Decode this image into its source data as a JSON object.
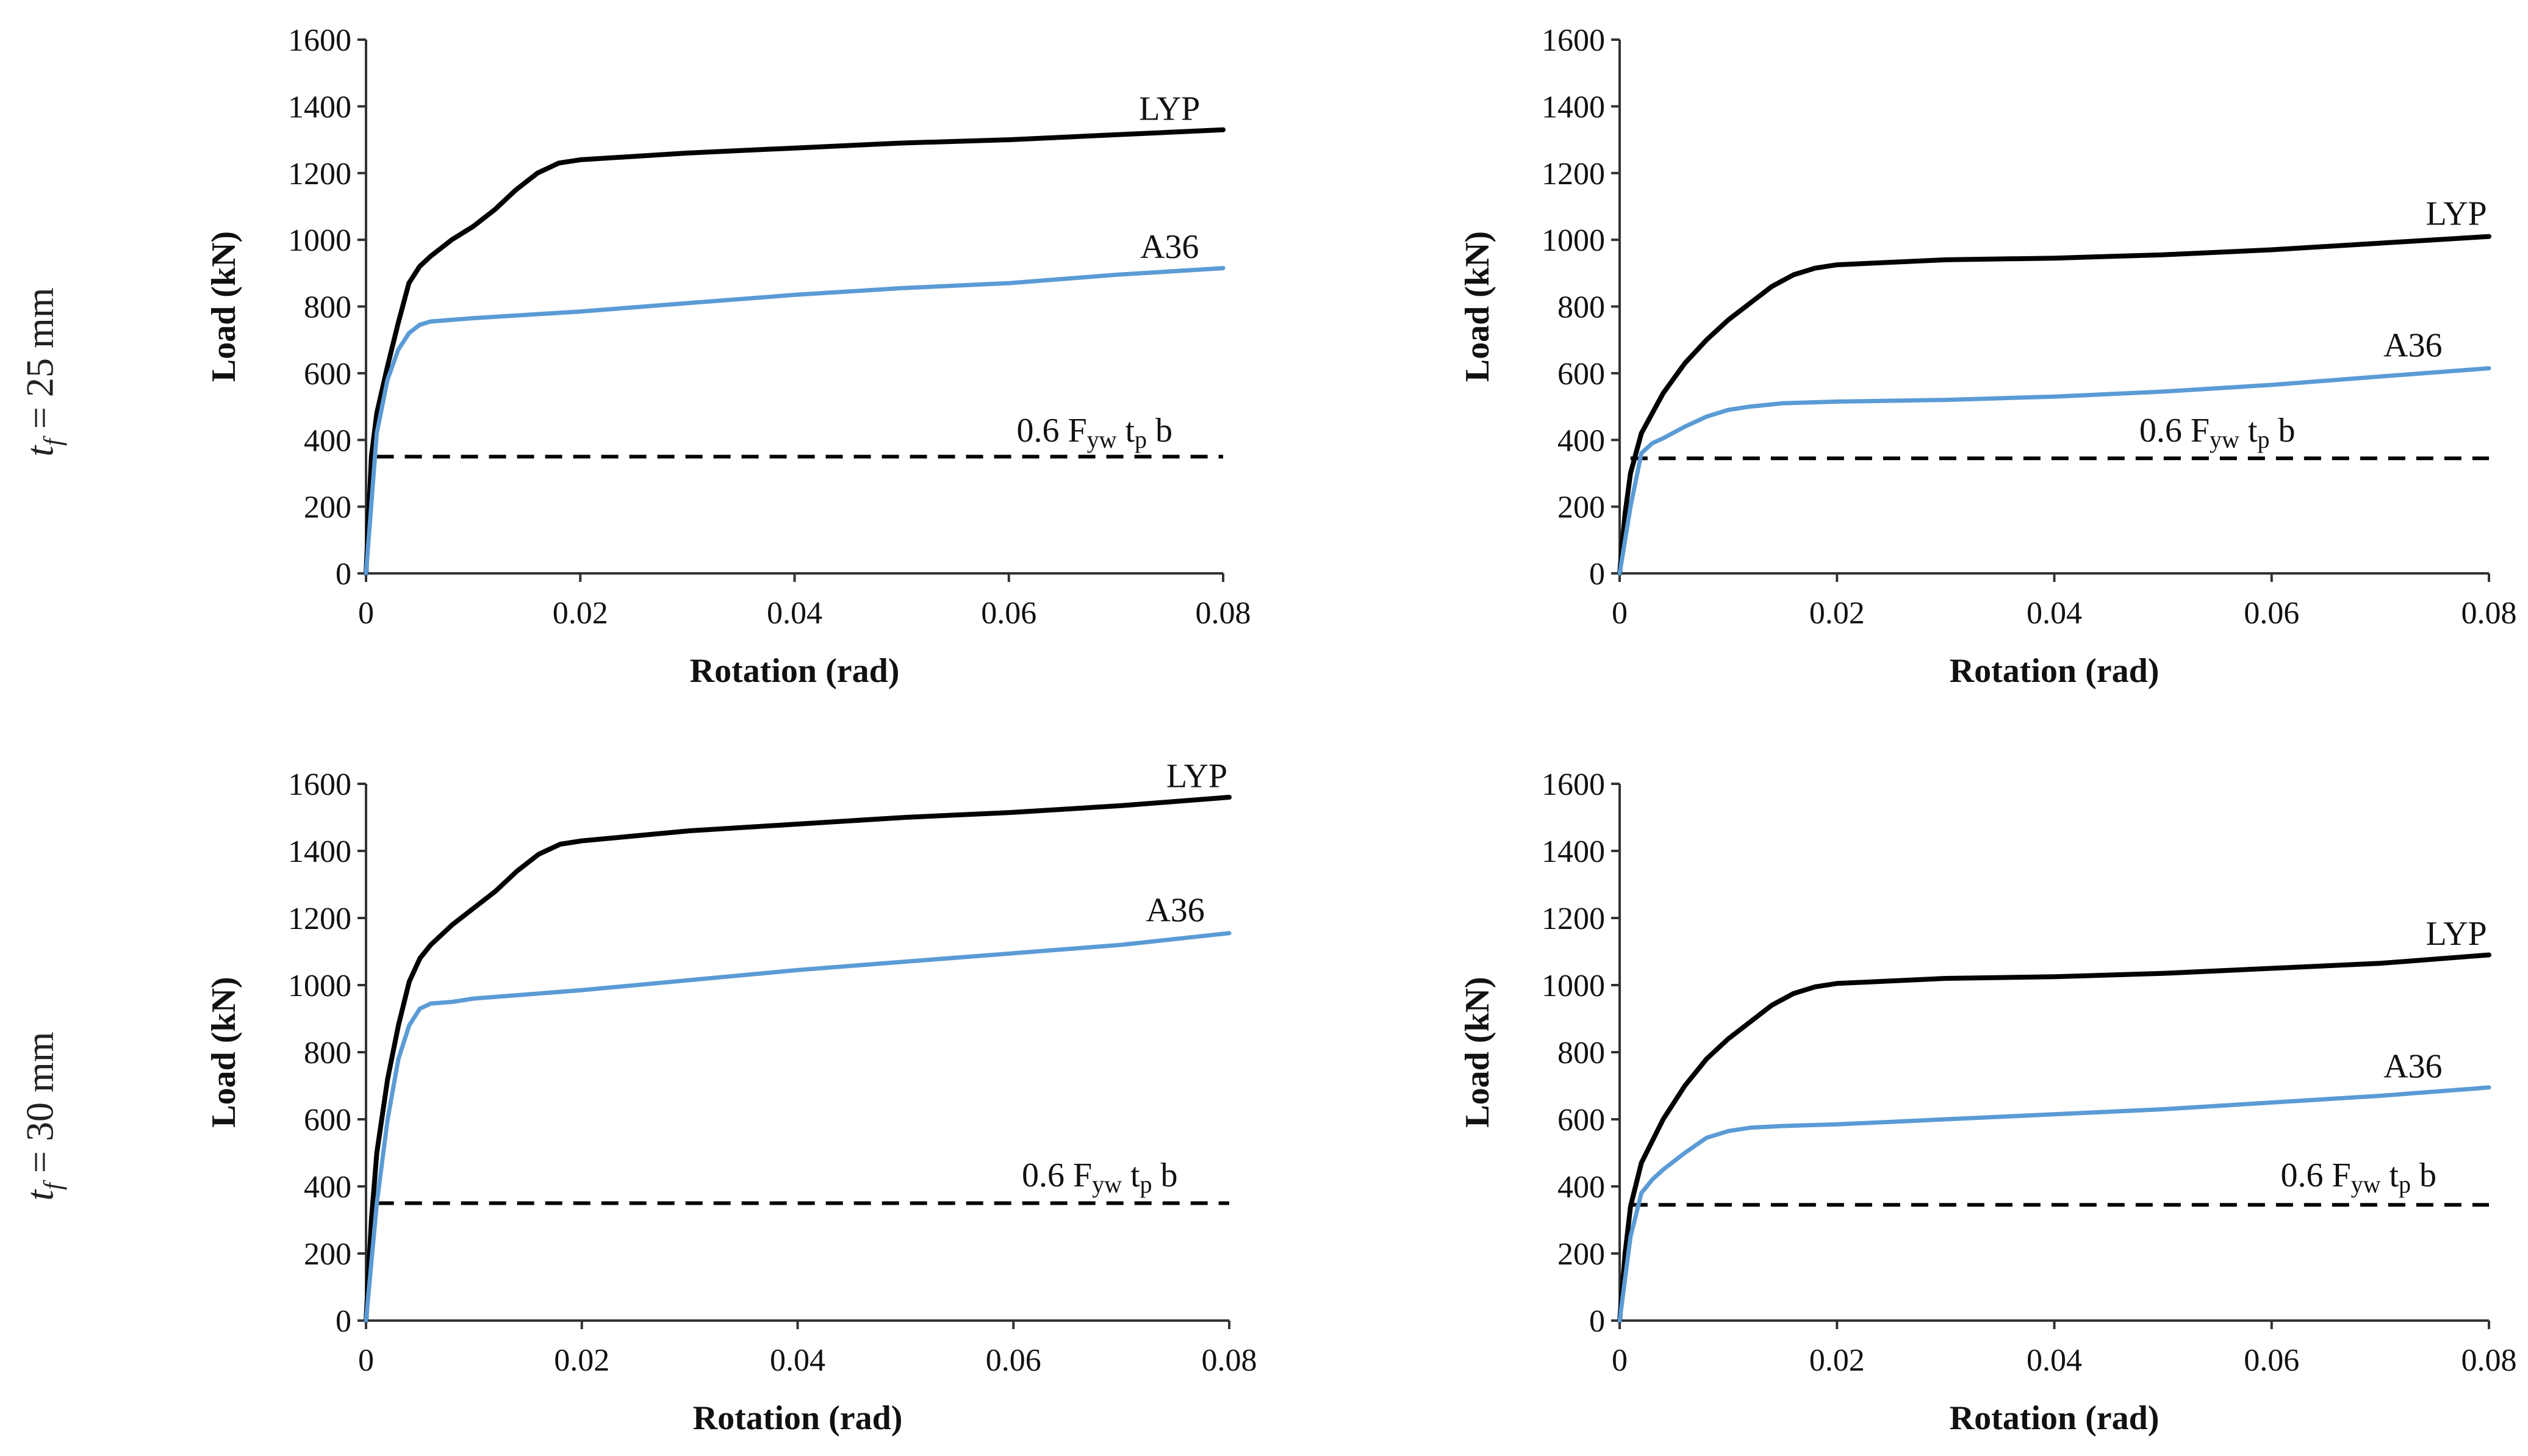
{
  "row_labels": [
    {
      "symbol": "t",
      "subscript": "f",
      "equals": "=",
      "value": "25 mm"
    },
    {
      "symbol": "t",
      "subscript": "f",
      "equals": "=",
      "value": "30 mm"
    }
  ],
  "colors": {
    "LYP": "#000000",
    "A36": "#5b9bd5",
    "reference": "#000000"
  },
  "reference_label": {
    "main": "0.6 F",
    "sub1": "yw",
    "mid": " t",
    "sub2": "p",
    "tail": " b"
  },
  "chart_data": [
    {
      "type": "line",
      "panel": "top-left",
      "xlabel": "Rotation (rad)",
      "ylabel": "Load (kN)",
      "xlim": [
        0,
        0.08
      ],
      "ylim": [
        0,
        1600
      ],
      "xticks": [
        0,
        0.02,
        0.04,
        0.06,
        0.08
      ],
      "xtick_labels": [
        "0",
        "0.02",
        "0.04",
        "0.06",
        "0.08"
      ],
      "yticks": [
        0,
        200,
        400,
        600,
        800,
        1000,
        1200,
        1400,
        1600
      ],
      "ytick_labels": [
        "0",
        "200",
        "400",
        "600",
        "800",
        "1000",
        "1200",
        "1400",
        "1600"
      ],
      "series": [
        {
          "name": "LYP",
          "label": "LYP",
          "x": [
            0,
            0.0005,
            0.001,
            0.002,
            0.003,
            0.004,
            0.005,
            0.006,
            0.008,
            0.01,
            0.012,
            0.014,
            0.016,
            0.018,
            0.02,
            0.03,
            0.04,
            0.05,
            0.06,
            0.07,
            0.08
          ],
          "y": [
            0,
            350,
            480,
            620,
            750,
            870,
            920,
            950,
            1000,
            1040,
            1090,
            1150,
            1200,
            1230,
            1240,
            1260,
            1275,
            1290,
            1300,
            1315,
            1330
          ]
        },
        {
          "name": "A36",
          "label": "A36",
          "x": [
            0,
            0.001,
            0.002,
            0.003,
            0.004,
            0.005,
            0.006,
            0.008,
            0.01,
            0.02,
            0.03,
            0.04,
            0.05,
            0.06,
            0.07,
            0.08
          ],
          "y": [
            0,
            420,
            580,
            670,
            720,
            745,
            755,
            760,
            765,
            785,
            810,
            835,
            855,
            870,
            895,
            915
          ]
        }
      ],
      "reference": {
        "y": 350,
        "x_start": 0.001,
        "x_end": 0.08
      }
    },
    {
      "type": "line",
      "panel": "top-right",
      "xlabel": "Rotation (rad)",
      "ylabel": "Load (kN)",
      "xlim": [
        0,
        0.08
      ],
      "ylim": [
        0,
        1600
      ],
      "xticks": [
        0,
        0.02,
        0.04,
        0.06,
        0.08
      ],
      "xtick_labels": [
        "0",
        "0.02",
        "0.04",
        "0.06",
        "0.08"
      ],
      "yticks": [
        0,
        200,
        400,
        600,
        800,
        1000,
        1200,
        1400,
        1600
      ],
      "ytick_labels": [
        "0",
        "200",
        "400",
        "600",
        "800",
        "1000",
        "1200",
        "1400",
        "1600"
      ],
      "series": [
        {
          "name": "LYP",
          "label": "LYP",
          "x": [
            0,
            0.0005,
            0.001,
            0.002,
            0.004,
            0.006,
            0.008,
            0.01,
            0.012,
            0.014,
            0.016,
            0.018,
            0.02,
            0.03,
            0.04,
            0.05,
            0.06,
            0.07,
            0.08
          ],
          "y": [
            0,
            180,
            300,
            420,
            540,
            630,
            700,
            760,
            810,
            860,
            895,
            915,
            925,
            940,
            945,
            955,
            970,
            990,
            1010
          ]
        },
        {
          "name": "A36",
          "label": "A36",
          "x": [
            0,
            0.001,
            0.002,
            0.003,
            0.004,
            0.006,
            0.008,
            0.01,
            0.012,
            0.015,
            0.02,
            0.03,
            0.04,
            0.05,
            0.06,
            0.07,
            0.08
          ],
          "y": [
            0,
            200,
            360,
            390,
            405,
            440,
            470,
            490,
            500,
            510,
            515,
            520,
            530,
            545,
            565,
            590,
            615
          ]
        }
      ],
      "reference": {
        "y": 345,
        "x_start": 0.001,
        "x_end": 0.08
      }
    },
    {
      "type": "line",
      "panel": "bottom-left",
      "xlabel": "Rotation (rad)",
      "ylabel": "Load (kN)",
      "xlim": [
        0,
        0.08
      ],
      "ylim": [
        0,
        1600
      ],
      "xticks": [
        0,
        0.02,
        0.04,
        0.06,
        0.08
      ],
      "xtick_labels": [
        "0",
        "0.02",
        "0.04",
        "0.06",
        "0.08"
      ],
      "yticks": [
        0,
        200,
        400,
        600,
        800,
        1000,
        1200,
        1400,
        1600
      ],
      "ytick_labels": [
        "0",
        "200",
        "400",
        "600",
        "800",
        "1000",
        "1200",
        "1400",
        "1600"
      ],
      "series": [
        {
          "name": "LYP",
          "label": "LYP",
          "x": [
            0,
            0.0005,
            0.001,
            0.002,
            0.003,
            0.004,
            0.005,
            0.006,
            0.008,
            0.01,
            0.012,
            0.014,
            0.016,
            0.018,
            0.02,
            0.03,
            0.04,
            0.05,
            0.06,
            0.07,
            0.08
          ],
          "y": [
            0,
            300,
            500,
            720,
            880,
            1010,
            1080,
            1120,
            1180,
            1230,
            1280,
            1340,
            1390,
            1420,
            1430,
            1460,
            1480,
            1500,
            1515,
            1535,
            1560
          ]
        },
        {
          "name": "A36",
          "label": "A36",
          "x": [
            0,
            0.001,
            0.002,
            0.003,
            0.004,
            0.005,
            0.006,
            0.008,
            0.01,
            0.02,
            0.03,
            0.04,
            0.05,
            0.06,
            0.07,
            0.08
          ],
          "y": [
            0,
            350,
            600,
            780,
            880,
            930,
            945,
            950,
            960,
            985,
            1015,
            1045,
            1070,
            1095,
            1120,
            1155
          ]
        }
      ],
      "reference": {
        "y": 350,
        "x_start": 0.001,
        "x_end": 0.08
      }
    },
    {
      "type": "line",
      "panel": "bottom-right",
      "xlabel": "Rotation (rad)",
      "ylabel": "Load (kN)",
      "xlim": [
        0,
        0.08
      ],
      "ylim": [
        0,
        1600
      ],
      "xticks": [
        0,
        0.02,
        0.04,
        0.06,
        0.08
      ],
      "xtick_labels": [
        "0",
        "0.02",
        "0.04",
        "0.06",
        "0.08"
      ],
      "yticks": [
        0,
        200,
        400,
        600,
        800,
        1000,
        1200,
        1400,
        1600
      ],
      "ytick_labels": [
        "0",
        "200",
        "400",
        "600",
        "800",
        "1000",
        "1200",
        "1400",
        "1600"
      ],
      "series": [
        {
          "name": "LYP",
          "label": "LYP",
          "x": [
            0,
            0.0005,
            0.001,
            0.002,
            0.004,
            0.006,
            0.008,
            0.01,
            0.012,
            0.014,
            0.016,
            0.018,
            0.02,
            0.03,
            0.04,
            0.05,
            0.06,
            0.07,
            0.08
          ],
          "y": [
            0,
            200,
            340,
            470,
            600,
            700,
            780,
            840,
            890,
            940,
            975,
            995,
            1005,
            1020,
            1025,
            1035,
            1050,
            1065,
            1090
          ]
        },
        {
          "name": "A36",
          "label": "A36",
          "x": [
            0,
            0.001,
            0.002,
            0.003,
            0.004,
            0.006,
            0.008,
            0.01,
            0.012,
            0.015,
            0.02,
            0.03,
            0.04,
            0.05,
            0.06,
            0.07,
            0.08
          ],
          "y": [
            0,
            250,
            380,
            420,
            450,
            500,
            545,
            565,
            575,
            580,
            585,
            600,
            615,
            630,
            650,
            670,
            695
          ]
        }
      ],
      "reference": {
        "y": 345,
        "x_start": 0.001,
        "x_end": 0.08
      }
    }
  ]
}
